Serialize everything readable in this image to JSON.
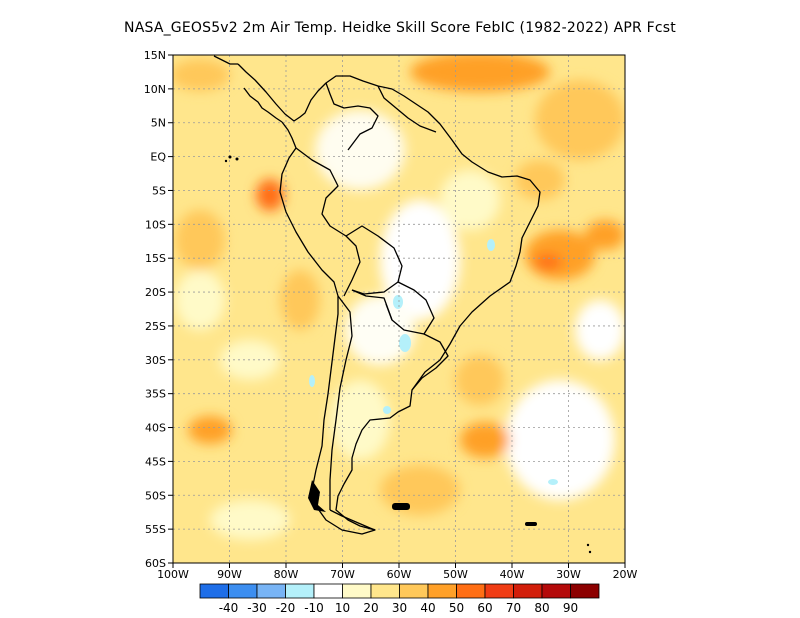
{
  "title": "NASA_GEOS5v2  2m Air Temp. Heidke Skill Score FebIC (1982-2022) APR Fcst",
  "map": {
    "lat_labels": [
      "15N",
      "10N",
      "5N",
      "EQ",
      "5S",
      "10S",
      "15S",
      "20S",
      "25S",
      "30S",
      "35S",
      "40S",
      "45S",
      "50S",
      "55S",
      "60S"
    ],
    "lon_labels": [
      "100W",
      "90W",
      "80W",
      "70W",
      "60W",
      "50W",
      "40W",
      "30W",
      "20W"
    ],
    "lat_range": [
      -60,
      15
    ],
    "lon_range": [
      -100,
      -20
    ],
    "grid": true
  },
  "colorbar": {
    "labels": [
      "-40",
      "-30",
      "-20",
      "-10",
      "10",
      "20",
      "30",
      "40",
      "50",
      "60",
      "70",
      "80",
      "90"
    ],
    "colors": [
      "#1e6ee8",
      "#3c8ef0",
      "#78b4f5",
      "#b4f0fa",
      "#ffffff",
      "#fffac8",
      "#ffe68c",
      "#ffc85a",
      "#ffa028",
      "#ff6e14",
      "#f03c14",
      "#d21e0a",
      "#b40a0a",
      "#8c0000"
    ]
  }
}
